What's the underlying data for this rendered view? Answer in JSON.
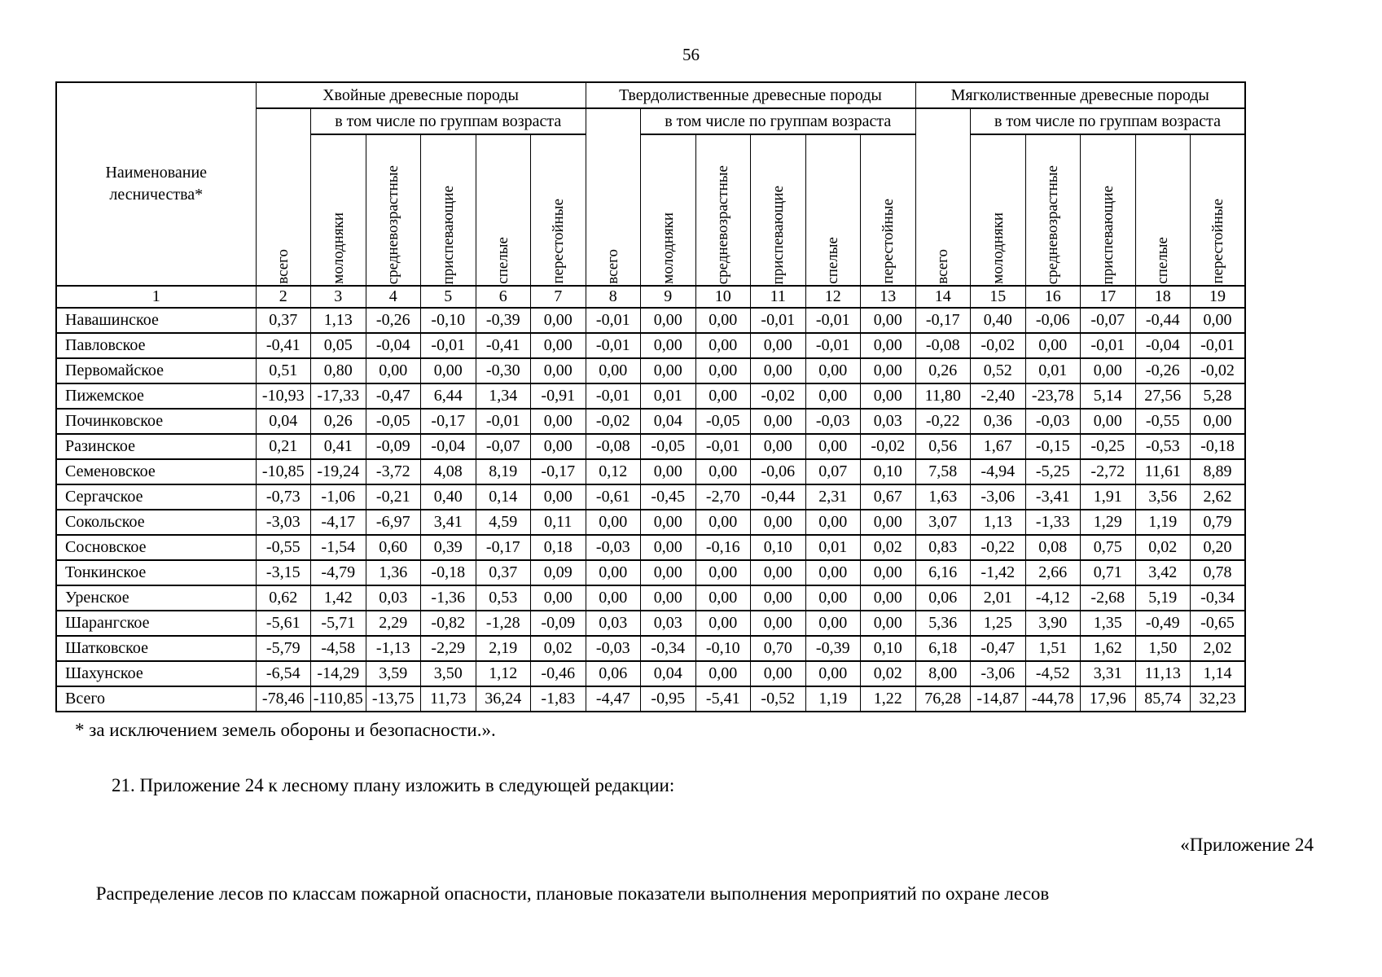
{
  "page": {
    "number": "56"
  },
  "table": {
    "name_header": "Наименование лесничества*",
    "groups": [
      {
        "title": "Хвойные древесные породы"
      },
      {
        "title": "Твердолиственные древесные породы"
      },
      {
        "title": "Мягколиственные древесные породы"
      }
    ],
    "subgroup_header": "в том числе по группам возраста",
    "age_columns": [
      "всего",
      "молодняки",
      "средневозрастные",
      "приспевающие",
      "спелые",
      "перестойные"
    ],
    "column_numbers": [
      "1",
      "2",
      "3",
      "4",
      "5",
      "6",
      "7",
      "8",
      "9",
      "10",
      "11",
      "12",
      "13",
      "14",
      "15",
      "16",
      "17",
      "18",
      "19"
    ],
    "rows": [
      {
        "name": "Навашинское",
        "values": [
          "0,37",
          "1,13",
          "-0,26",
          "-0,10",
          "-0,39",
          "0,00",
          "-0,01",
          "0,00",
          "0,00",
          "-0,01",
          "-0,01",
          "0,00",
          "-0,17",
          "0,40",
          "-0,06",
          "-0,07",
          "-0,44",
          "0,00"
        ]
      },
      {
        "name": "Павловское",
        "values": [
          "-0,41",
          "0,05",
          "-0,04",
          "-0,01",
          "-0,41",
          "0,00",
          "-0,01",
          "0,00",
          "0,00",
          "0,00",
          "-0,01",
          "0,00",
          "-0,08",
          "-0,02",
          "0,00",
          "-0,01",
          "-0,04",
          "-0,01"
        ]
      },
      {
        "name": "Первомайское",
        "values": [
          "0,51",
          "0,80",
          "0,00",
          "0,00",
          "-0,30",
          "0,00",
          "0,00",
          "0,00",
          "0,00",
          "0,00",
          "0,00",
          "0,00",
          "0,26",
          "0,52",
          "0,01",
          "0,00",
          "-0,26",
          "-0,02"
        ]
      },
      {
        "name": "Пижемское",
        "values": [
          "-10,93",
          "-17,33",
          "-0,47",
          "6,44",
          "1,34",
          "-0,91",
          "-0,01",
          "0,01",
          "0,00",
          "-0,02",
          "0,00",
          "0,00",
          "11,80",
          "-2,40",
          "-23,78",
          "5,14",
          "27,56",
          "5,28"
        ]
      },
      {
        "name": "Починковское",
        "values": [
          "0,04",
          "0,26",
          "-0,05",
          "-0,17",
          "-0,01",
          "0,00",
          "-0,02",
          "0,04",
          "-0,05",
          "0,00",
          "-0,03",
          "0,03",
          "-0,22",
          "0,36",
          "-0,03",
          "0,00",
          "-0,55",
          "0,00"
        ]
      },
      {
        "name": "Разинское",
        "values": [
          "0,21",
          "0,41",
          "-0,09",
          "-0,04",
          "-0,07",
          "0,00",
          "-0,08",
          "-0,05",
          "-0,01",
          "0,00",
          "0,00",
          "-0,02",
          "0,56",
          "1,67",
          "-0,15",
          "-0,25",
          "-0,53",
          "-0,18"
        ]
      },
      {
        "name": "Семеновское",
        "values": [
          "-10,85",
          "-19,24",
          "-3,72",
          "4,08",
          "8,19",
          "-0,17",
          "0,12",
          "0,00",
          "0,00",
          "-0,06",
          "0,07",
          "0,10",
          "7,58",
          "-4,94",
          "-5,25",
          "-2,72",
          "11,61",
          "8,89"
        ]
      },
      {
        "name": "Сергачское",
        "values": [
          "-0,73",
          "-1,06",
          "-0,21",
          "0,40",
          "0,14",
          "0,00",
          "-0,61",
          "-0,45",
          "-2,70",
          "-0,44",
          "2,31",
          "0,67",
          "1,63",
          "-3,06",
          "-3,41",
          "1,91",
          "3,56",
          "2,62"
        ]
      },
      {
        "name": "Сокольское",
        "values": [
          "-3,03",
          "-4,17",
          "-6,97",
          "3,41",
          "4,59",
          "0,11",
          "0,00",
          "0,00",
          "0,00",
          "0,00",
          "0,00",
          "0,00",
          "3,07",
          "1,13",
          "-1,33",
          "1,29",
          "1,19",
          "0,79"
        ]
      },
      {
        "name": "Сосновское",
        "values": [
          "-0,55",
          "-1,54",
          "0,60",
          "0,39",
          "-0,17",
          "0,18",
          "-0,03",
          "0,00",
          "-0,16",
          "0,10",
          "0,01",
          "0,02",
          "0,83",
          "-0,22",
          "0,08",
          "0,75",
          "0,02",
          "0,20"
        ]
      },
      {
        "name": "Тонкинское",
        "values": [
          "-3,15",
          "-4,79",
          "1,36",
          "-0,18",
          "0,37",
          "0,09",
          "0,00",
          "0,00",
          "0,00",
          "0,00",
          "0,00",
          "0,00",
          "6,16",
          "-1,42",
          "2,66",
          "0,71",
          "3,42",
          "0,78"
        ]
      },
      {
        "name": "Уренское",
        "values": [
          "0,62",
          "1,42",
          "0,03",
          "-1,36",
          "0,53",
          "0,00",
          "0,00",
          "0,00",
          "0,00",
          "0,00",
          "0,00",
          "0,00",
          "0,06",
          "2,01",
          "-4,12",
          "-2,68",
          "5,19",
          "-0,34"
        ]
      },
      {
        "name": "Шарангское",
        "values": [
          "-5,61",
          "-5,71",
          "2,29",
          "-0,82",
          "-1,28",
          "-0,09",
          "0,03",
          "0,03",
          "0,00",
          "0,00",
          "0,00",
          "0,00",
          "5,36",
          "1,25",
          "3,90",
          "1,35",
          "-0,49",
          "-0,65"
        ]
      },
      {
        "name": "Шатковское",
        "values": [
          "-5,79",
          "-4,58",
          "-1,13",
          "-2,29",
          "2,19",
          "0,02",
          "-0,03",
          "-0,34",
          "-0,10",
          "0,70",
          "-0,39",
          "0,10",
          "6,18",
          "-0,47",
          "1,51",
          "1,62",
          "1,50",
          "2,02"
        ]
      },
      {
        "name": "Шахунское",
        "values": [
          "-6,54",
          "-14,29",
          "3,59",
          "3,50",
          "1,12",
          "-0,46",
          "0,06",
          "0,04",
          "0,00",
          "0,00",
          "0,00",
          "0,02",
          "8,00",
          "-3,06",
          "-4,52",
          "3,31",
          "11,13",
          "1,14"
        ]
      },
      {
        "name": "Всего",
        "values": [
          "-78,46",
          "-110,85",
          "-13,75",
          "11,73",
          "36,24",
          "-1,83",
          "-4,47",
          "-0,95",
          "-5,41",
          "-0,52",
          "1,19",
          "1,22",
          "76,28",
          "-14,87",
          "-44,78",
          "17,96",
          "85,74",
          "32,23"
        ]
      }
    ]
  },
  "footnote": "* за исключением земель обороны и безопасности.».",
  "paragraph": "21. Приложение 24 к лесному плану изложить в следующей редакции:",
  "appendix_label": "«Приложение 24",
  "appendix_title": "Распределение лесов по классам пожарной опасности, плановые показатели выполнения мероприятий по охране лесов"
}
